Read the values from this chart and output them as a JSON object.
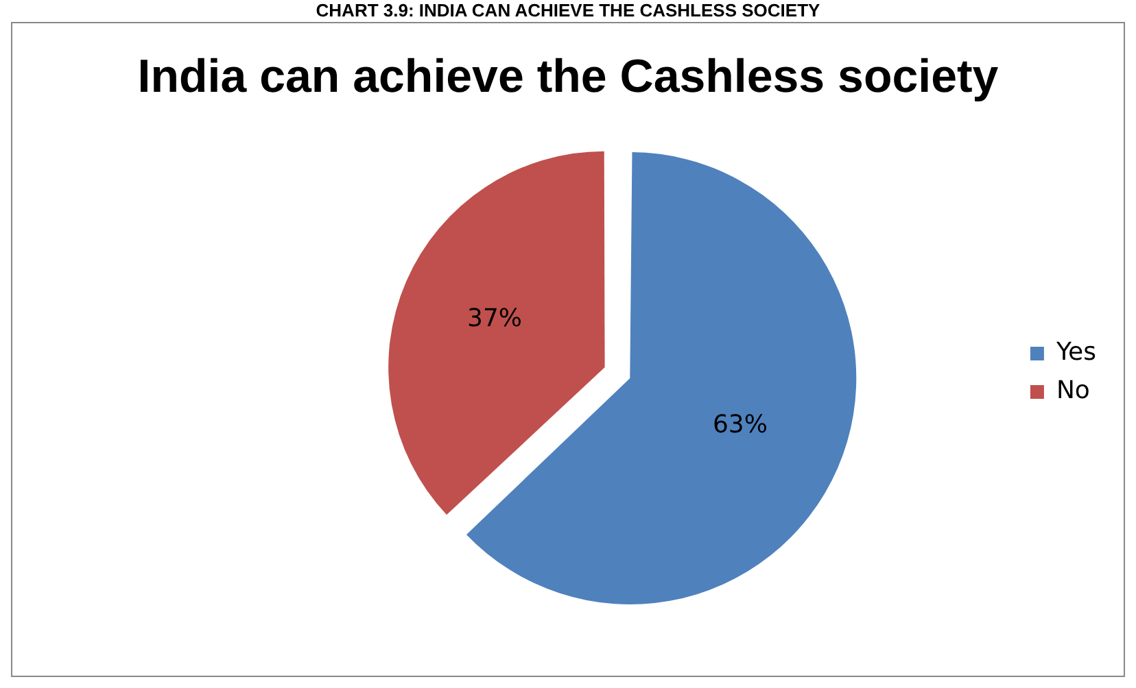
{
  "chart_data": {
    "type": "pie",
    "title": "India can achieve the Cashless society",
    "annotations": [
      "CHART 3.9: INDIA CAN ACHIEVE THE CASHLESS SOCIETY"
    ],
    "categories": [
      "Yes",
      "No"
    ],
    "values": [
      63,
      37
    ],
    "colors": [
      "#4f81bd",
      "#c0504d"
    ],
    "value_labels": [
      "63%",
      "37%"
    ],
    "legend": "right"
  }
}
